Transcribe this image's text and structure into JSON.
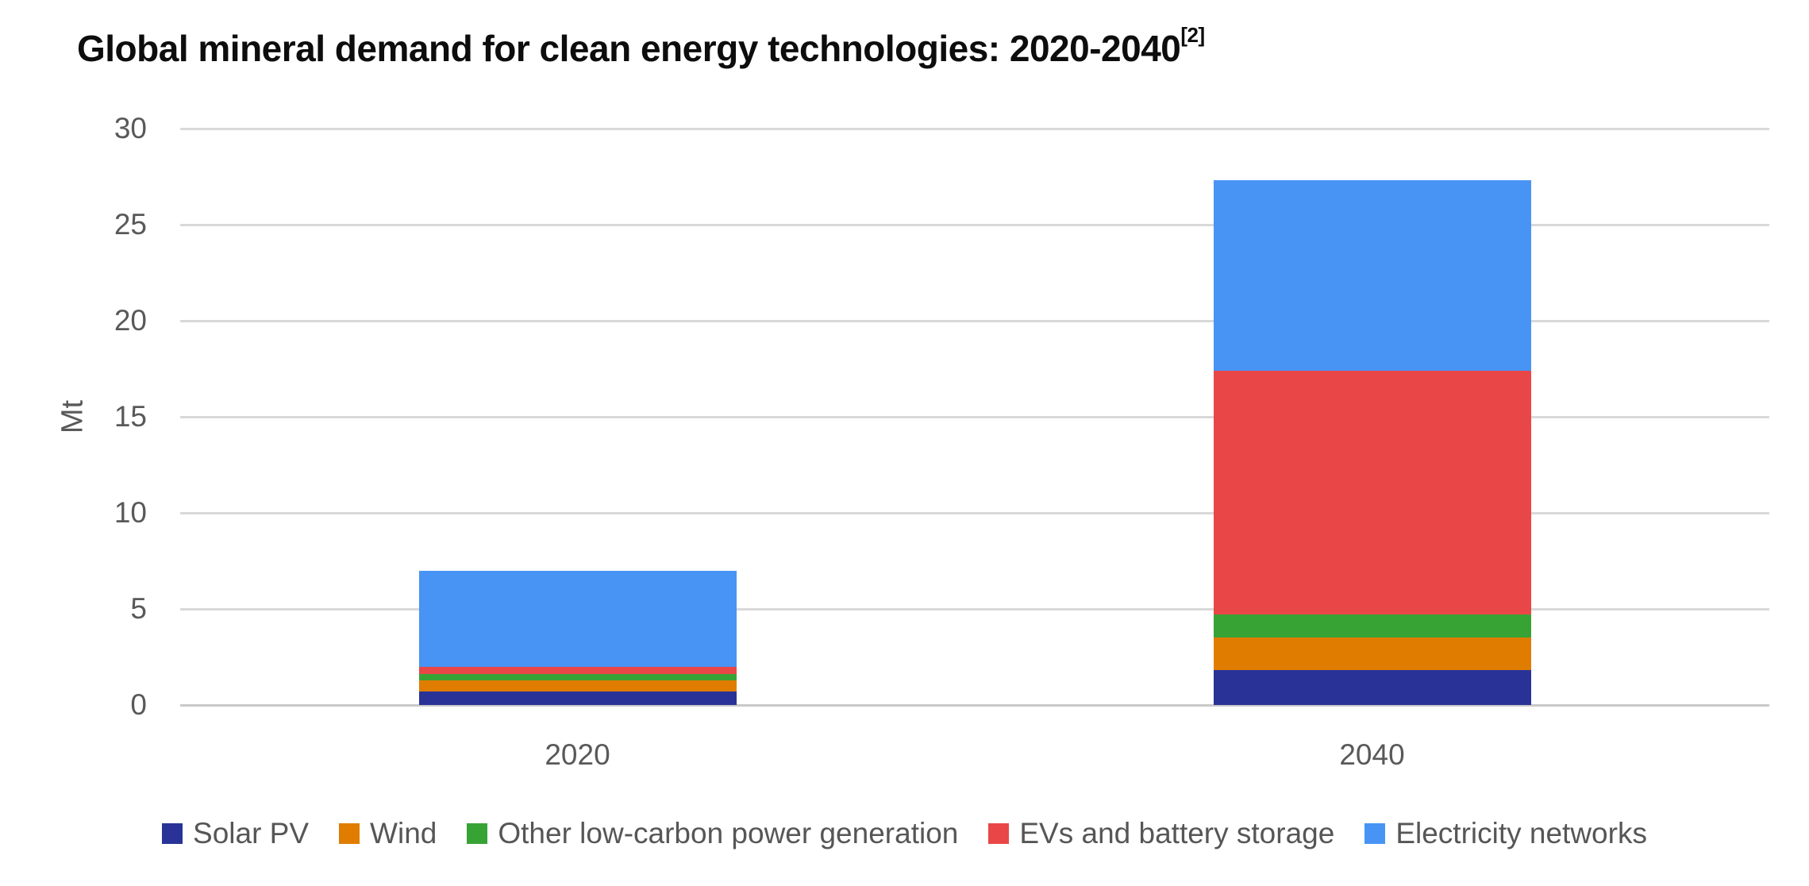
{
  "title": {
    "text": "Global mineral demand for clean energy technologies: 2020-2040",
    "superscript": "[2]"
  },
  "chart_data": {
    "type": "bar",
    "stacked": true,
    "title": "Global mineral demand for clean energy technologies: 2020-2040[2]",
    "categories": [
      "2020",
      "2040"
    ],
    "series": [
      {
        "name": "Solar PV",
        "color": "#293397",
        "values": [
          0.7,
          1.8
        ]
      },
      {
        "name": "Wind",
        "color": "#e07d00",
        "values": [
          0.6,
          1.7
        ]
      },
      {
        "name": "Other low-carbon power generation",
        "color": "#38a335",
        "values": [
          0.3,
          1.2
        ]
      },
      {
        "name": "EVs and battery storage",
        "color": "#e94747",
        "values": [
          0.4,
          12.7
        ]
      },
      {
        "name": "Electricity networks",
        "color": "#4894f4",
        "values": [
          5.0,
          9.9
        ]
      }
    ],
    "totals": [
      7.0,
      27.3
    ],
    "xlabel": "",
    "ylabel": "Mt",
    "ylim": [
      0,
      30
    ],
    "y_ticks": [
      0,
      5,
      10,
      15,
      20,
      25,
      30
    ],
    "grid": true,
    "gridline_color": "#d9d9d9",
    "zero_line_color": "#c9c9c9",
    "axis_text_color": "#595959",
    "legend_position": "bottom"
  }
}
